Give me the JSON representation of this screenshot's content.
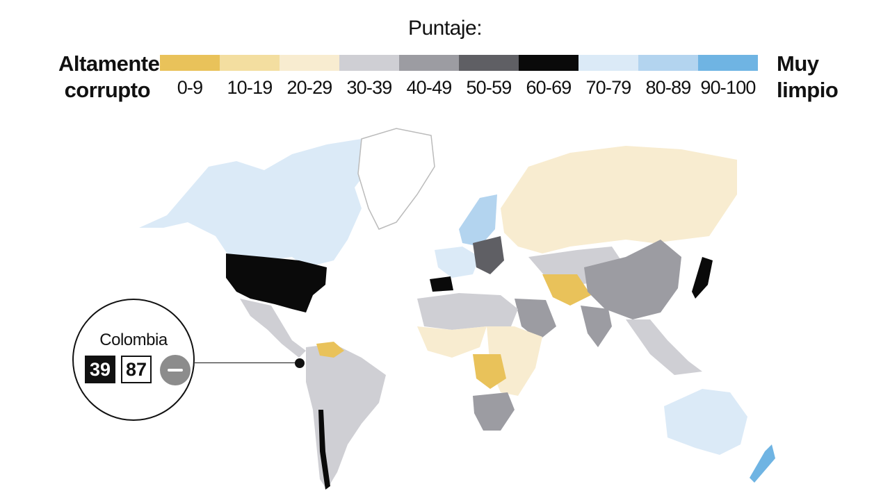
{
  "legend": {
    "title": "Puntaje:",
    "left_label_line1": "Altamente",
    "left_label_line2": "corrupto",
    "right_label_line1": "Muy",
    "right_label_line2": "limpio",
    "bins": [
      {
        "range": "0-9",
        "color": "#e9c25a"
      },
      {
        "range": "10-19",
        "color": "#f3dea0"
      },
      {
        "range": "20-29",
        "color": "#f8ecd0"
      },
      {
        "range": "30-39",
        "color": "#cfcfd4"
      },
      {
        "range": "40-49",
        "color": "#9c9ca2"
      },
      {
        "range": "50-59",
        "color": "#5f5f64"
      },
      {
        "range": "60-69",
        "color": "#0a0a0a"
      },
      {
        "range": "70-79",
        "color": "#dbeaf7"
      },
      {
        "range": "80-89",
        "color": "#b3d4ef"
      },
      {
        "range": "90-100",
        "color": "#6fb4e3"
      }
    ]
  },
  "callout": {
    "country": "Colombia",
    "score": "39",
    "rank": "87",
    "trend_icon": "minus-circle-icon"
  }
}
